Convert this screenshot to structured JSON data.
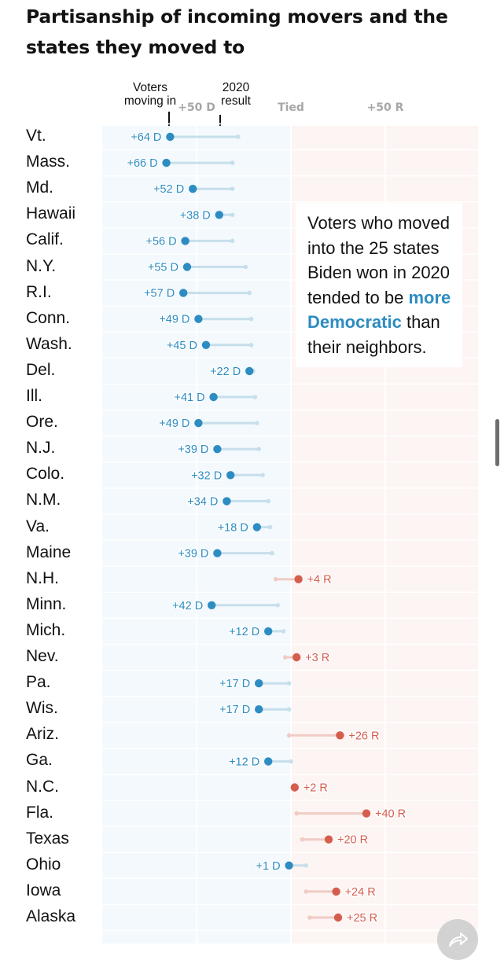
{
  "chart_data": {
    "type": "dot-arrow",
    "title": "Partisanship of incoming movers and the states they moved to",
    "legend": {
      "movers_label_line1": "Voters",
      "movers_label_line2": "moving in",
      "result_label_line1": "2020",
      "result_label_line2": "result"
    },
    "x_axis": {
      "ticks": [
        {
          "value": -50,
          "label": "+50 D"
        },
        {
          "value": 0,
          "label": "Tied"
        },
        {
          "value": 50,
          "label": "+50 R"
        }
      ]
    },
    "callout": {
      "text_before": "Voters who moved into the 25 states Biden won in 2020 tended to be ",
      "highlight": "more Democratic",
      "text_after": " than their neighbors."
    },
    "colors": {
      "dem": "#2d8cc2",
      "dem_line": "#c6dfeb",
      "rep": "#d55d4e",
      "rep_line": "#f0cbc4",
      "dem_bg": "#f3f9fd",
      "rep_bg": "#fdf5f3"
    },
    "series": [
      {
        "name": "Voters moving in",
        "field": "movers"
      },
      {
        "name": "2020 result",
        "field": "result"
      }
    ],
    "states": [
      {
        "state": "Vt.",
        "movers": -64,
        "result": -28,
        "label": "+64 D"
      },
      {
        "state": "Mass.",
        "movers": -66,
        "result": -31,
        "label": "+66 D"
      },
      {
        "state": "Md.",
        "movers": -52,
        "result": -31,
        "label": "+52 D"
      },
      {
        "state": "Hawaii",
        "movers": -38,
        "result": -31,
        "label": "+38 D"
      },
      {
        "state": "Calif.",
        "movers": -56,
        "result": -31,
        "label": "+56 D"
      },
      {
        "state": "N.Y.",
        "movers": -55,
        "result": -24,
        "label": "+55 D"
      },
      {
        "state": "R.I.",
        "movers": -57,
        "result": -22,
        "label": "+57 D"
      },
      {
        "state": "Conn.",
        "movers": -49,
        "result": -21,
        "label": "+49 D"
      },
      {
        "state": "Wash.",
        "movers": -45,
        "result": -21,
        "label": "+45 D"
      },
      {
        "state": "Del.",
        "movers": -22,
        "result": -20,
        "label": "+22 D"
      },
      {
        "state": "Ill.",
        "movers": -41,
        "result": -19,
        "label": "+41 D"
      },
      {
        "state": "Ore.",
        "movers": -49,
        "result": -18,
        "label": "+49 D"
      },
      {
        "state": "N.J.",
        "movers": -39,
        "result": -17,
        "label": "+39 D"
      },
      {
        "state": "Colo.",
        "movers": -32,
        "result": -15,
        "label": "+32 D"
      },
      {
        "state": "N.M.",
        "movers": -34,
        "result": -12,
        "label": "+34 D"
      },
      {
        "state": "Va.",
        "movers": -18,
        "result": -11,
        "label": "+18 D"
      },
      {
        "state": "Maine",
        "movers": -39,
        "result": -10,
        "label": "+39 D"
      },
      {
        "state": "N.H.",
        "movers": 4,
        "result": -8,
        "label": "+4 R"
      },
      {
        "state": "Minn.",
        "movers": -42,
        "result": -7,
        "label": "+42 D"
      },
      {
        "state": "Mich.",
        "movers": -12,
        "result": -4,
        "label": "+12 D"
      },
      {
        "state": "Nev.",
        "movers": 3,
        "result": -3,
        "label": "+3 R"
      },
      {
        "state": "Pa.",
        "movers": -17,
        "result": -1,
        "label": "+17 D"
      },
      {
        "state": "Wis.",
        "movers": -17,
        "result": -1,
        "label": "+17 D"
      },
      {
        "state": "Ariz.",
        "movers": 26,
        "result": -1,
        "label": "+26 R"
      },
      {
        "state": "Ga.",
        "movers": -12,
        "result": 0,
        "label": "+12 D"
      },
      {
        "state": "N.C.",
        "movers": 2,
        "result": 1,
        "label": "+2 R"
      },
      {
        "state": "Fla.",
        "movers": 40,
        "result": 3,
        "label": "+40 R"
      },
      {
        "state": "Texas",
        "movers": 20,
        "result": 6,
        "label": "+20 R"
      },
      {
        "state": "Ohio",
        "movers": -1,
        "result": 8,
        "label": "+1 D"
      },
      {
        "state": "Iowa",
        "movers": 24,
        "result": 8,
        "label": "+24 R"
      },
      {
        "state": "Alaska",
        "movers": 25,
        "result": 10,
        "label": "+25 R"
      }
    ]
  },
  "ui": {
    "scrollbar": "scrollbar",
    "share_icon": "share-arrow-icon"
  }
}
